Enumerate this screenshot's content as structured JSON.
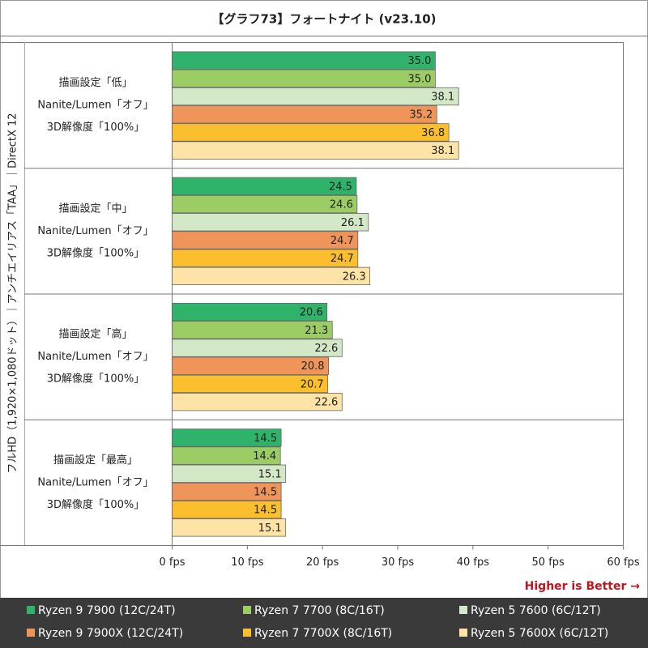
{
  "chart_data": {
    "type": "bar",
    "orientation": "horizontal",
    "title": "【グラフ73】フォートナイト (v23.10)",
    "axis_label": "フルHD（1,920×1,080ドット）｜アンチエイリアス「TAA」｜DirectX 12",
    "note": "Higher is Better →",
    "categories": [
      [
        "描画設定「低」",
        "Nanite/Lumen「オフ」",
        "3D解像度「100%」"
      ],
      [
        "描画設定「中」",
        "Nanite/Lumen「オフ」",
        "3D解像度「100%」"
      ],
      [
        "描画設定「高」",
        "Nanite/Lumen「オフ」",
        "3D解像度「100%」"
      ],
      [
        "描画設定「最高」",
        "Nanite/Lumen「オフ」",
        "3D解像度「100%」"
      ]
    ],
    "series": [
      {
        "name": "Ryzen 9 7900 (12C/24T)",
        "color": "#2fb36a",
        "values": [
          35.0,
          24.5,
          20.6,
          14.5
        ],
        "value_labels": [
          "35.0",
          "24.5",
          "20.6",
          "14.5"
        ]
      },
      {
        "name": "Ryzen 7 7700 (8C/16T)",
        "color": "#9ccc64",
        "values": [
          35.0,
          24.6,
          21.3,
          14.4
        ],
        "value_labels": [
          "35.0",
          "24.6",
          "21.3",
          "14.4"
        ]
      },
      {
        "name": "Ryzen 5 7600 (6C/12T)",
        "color": "#d3e8c6",
        "values": [
          38.1,
          26.1,
          22.6,
          15.1
        ],
        "value_labels": [
          "38.1",
          "26.1",
          "22.6",
          "15.1"
        ]
      },
      {
        "name": "Ryzen 9 7900X (12C/24T)",
        "color": "#f0955a",
        "values": [
          35.2,
          24.7,
          20.8,
          14.5
        ],
        "value_labels": [
          "35.2",
          "24.7",
          "20.8",
          "14.5"
        ]
      },
      {
        "name": "Ryzen 7 7700X (8C/16T)",
        "color": "#fbbe2c",
        "values": [
          36.8,
          24.7,
          20.7,
          14.5
        ],
        "value_labels": [
          "36.8",
          "24.7",
          "20.7",
          "14.5"
        ]
      },
      {
        "name": "Ryzen 5 7600X (6C/12T)",
        "color": "#fde3a6",
        "values": [
          38.1,
          26.3,
          22.6,
          15.1
        ],
        "value_labels": [
          "38.1",
          "26.3",
          "22.6",
          "15.1"
        ]
      }
    ],
    "xlim": [
      0,
      60
    ],
    "xticks": [
      {
        "value": 0,
        "label": "0 fps"
      },
      {
        "value": 10,
        "label": "10 fps"
      },
      {
        "value": 20,
        "label": "20 fps"
      },
      {
        "value": 30,
        "label": "30 fps"
      },
      {
        "value": 40,
        "label": "40 fps"
      },
      {
        "value": 50,
        "label": "50 fps"
      },
      {
        "value": 60,
        "label": "60 fps"
      }
    ]
  }
}
